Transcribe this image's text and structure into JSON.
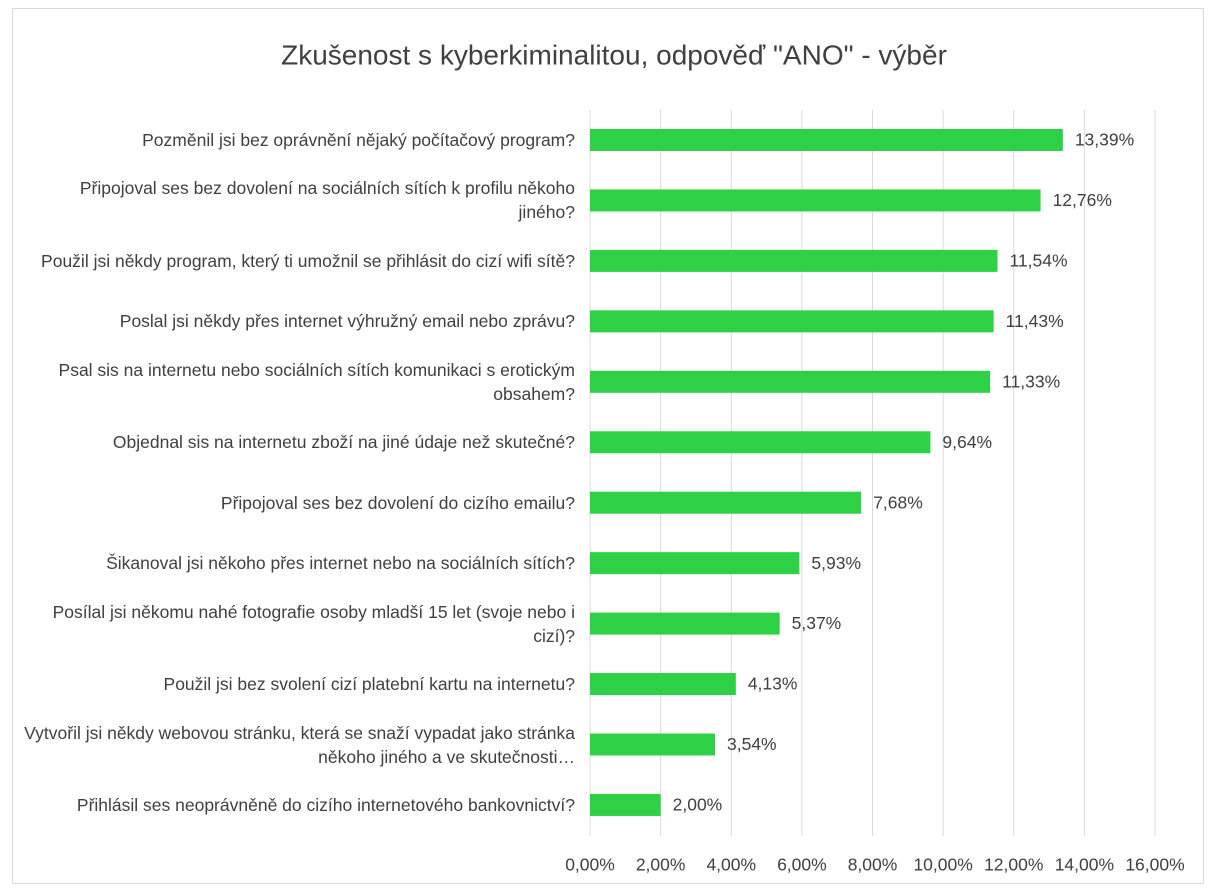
{
  "chart_data": {
    "type": "bar",
    "orientation": "horizontal",
    "title": "Zkušenost s kyberkiminalitou, odpověď \"ANO\" - výběr",
    "categories": [
      "Pozměnil jsi bez oprávnění nějaký počítačový program?",
      "Připojoval ses bez dovolení na sociálních sítích k profilu někoho jiného?",
      "Použil jsi někdy program, který ti umožnil se přihlásit do cizí wifi sítě?",
      "Poslal jsi někdy přes internet výhružný email nebo zprávu?",
      "Psal sis na internetu nebo sociálních sítích komunikaci s erotickým obsahem?",
      "Objednal sis na internetu zboží na jiné údaje než skutečné?",
      "Připojoval ses bez dovolení do cizího emailu?",
      "Šikanoval jsi někoho přes internet nebo na sociálních sítích?",
      "Posílal jsi někomu nahé fotografie osoby mladší 15 let (svoje nebo i cizí)?",
      "Použil jsi bez svolení cizí platební kartu na internetu?",
      "Vytvořil jsi někdy webovou stránku, která se snaží vypadat jako stránka někoho jiného a ve skutečnosti…",
      "Přihlásil ses neoprávněně do cizího internetového bankovnictví?"
    ],
    "values": [
      13.39,
      12.76,
      11.54,
      11.43,
      11.33,
      9.64,
      7.68,
      5.93,
      5.37,
      4.13,
      3.54,
      2.0
    ],
    "value_labels": [
      "13,39%",
      "12,76%",
      "11,54%",
      "11,43%",
      "11,33%",
      "9,64%",
      "7,68%",
      "5,93%",
      "5,37%",
      "4,13%",
      "3,54%",
      "2,00%"
    ],
    "color": "#2ed145",
    "xlim": [
      0,
      16
    ],
    "xticks": [
      {
        "value": 0,
        "label": "0,00%"
      },
      {
        "value": 2,
        "label": "2,00%"
      },
      {
        "value": 4,
        "label": "4,00%"
      },
      {
        "value": 6,
        "label": "6,00%"
      },
      {
        "value": 8,
        "label": "8,00%"
      },
      {
        "value": 10,
        "label": "10,00%"
      },
      {
        "value": 12,
        "label": "12,00%"
      },
      {
        "value": 14,
        "label": "14,00%"
      },
      {
        "value": 16,
        "label": "16,00%"
      }
    ],
    "grid": true
  }
}
